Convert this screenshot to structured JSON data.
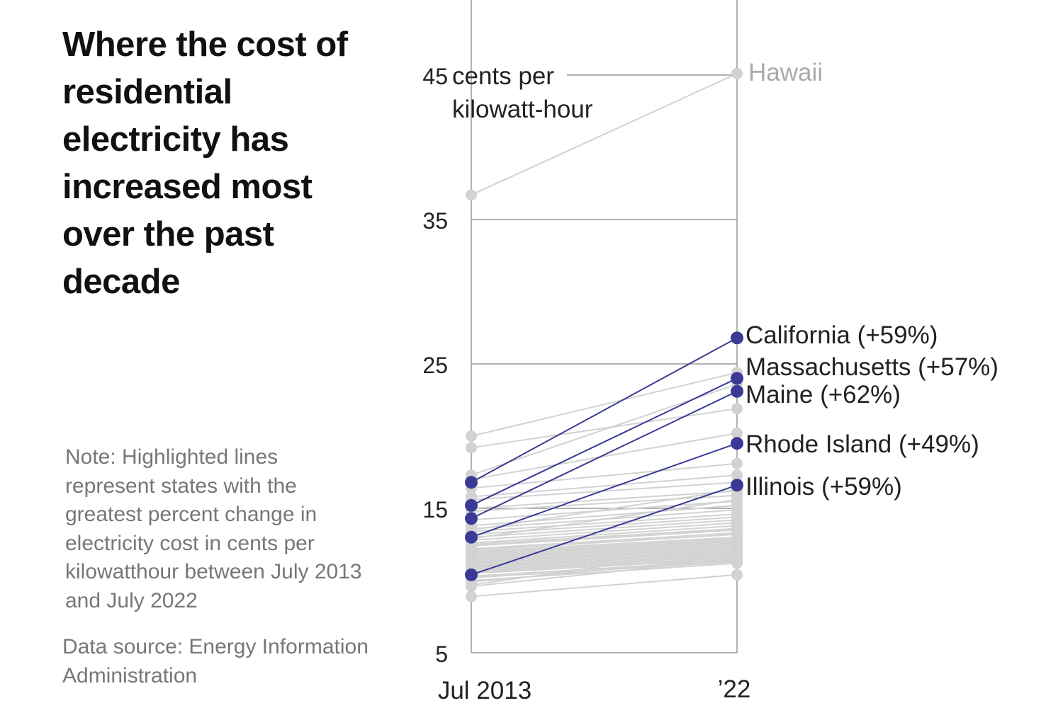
{
  "title": "Where the cost of residential electricity has increased most over the past decade",
  "note": "Note: Highlighted lines represent states with the greatest percent change in electricity cost in cents per kilowatthour between July 2013 and July 2022",
  "source": "Data source: Energy Information Administration",
  "chart_data": {
    "type": "slope",
    "title": "Where the cost of residential electricity has increased most over the past decade",
    "ylabel": "cents per kilowatt-hour",
    "ylim": [
      5,
      50
    ],
    "yticks": [
      5,
      15,
      25,
      35,
      45
    ],
    "ytick_labels": [
      "5",
      "15",
      "25",
      "35",
      "45"
    ],
    "unit_label_line1": "cents per",
    "unit_label_line2": "kilowatt-hour",
    "categories": [
      "Jul 2013",
      "’22"
    ],
    "colors": {
      "highlight": "#3a3a96",
      "other": "#d2d2d2"
    },
    "highlighted": [
      {
        "name": "California",
        "change": "(+59%)",
        "values": [
          16.8,
          26.8
        ]
      },
      {
        "name": "Massachusetts",
        "change": "(+57%)",
        "values": [
          15.2,
          24.0
        ]
      },
      {
        "name": "Maine",
        "change": "(+62%)",
        "values": [
          14.3,
          23.1
        ]
      },
      {
        "name": "Rhode Island",
        "change": "(+49%)",
        "values": [
          13.0,
          19.5
        ]
      },
      {
        "name": "Illinois",
        "change": "(+59%)",
        "values": [
          10.4,
          16.6
        ]
      }
    ],
    "labeled_other": {
      "name": "Hawaii",
      "values": [
        36.7,
        45.1
      ]
    },
    "others": [
      [
        20.0,
        24.4
      ],
      [
        19.2,
        21.9
      ],
      [
        17.3,
        23.6
      ],
      [
        17.0,
        20.2
      ],
      [
        16.4,
        18.1
      ],
      [
        15.8,
        17.3
      ],
      [
        15.6,
        16.8
      ],
      [
        15.0,
        16.2
      ],
      [
        14.8,
        15.9
      ],
      [
        14.2,
        15.5
      ],
      [
        13.8,
        15.2
      ],
      [
        13.6,
        14.9
      ],
      [
        13.4,
        14.6
      ],
      [
        13.2,
        14.4
      ],
      [
        13.0,
        14.2
      ],
      [
        12.8,
        14.0
      ],
      [
        12.6,
        13.8
      ],
      [
        12.5,
        13.6
      ],
      [
        12.4,
        13.5
      ],
      [
        12.2,
        13.3
      ],
      [
        12.1,
        13.2
      ],
      [
        12.0,
        13.0
      ],
      [
        11.9,
        12.9
      ],
      [
        11.8,
        12.8
      ],
      [
        11.7,
        12.7
      ],
      [
        11.6,
        12.6
      ],
      [
        11.5,
        12.5
      ],
      [
        11.4,
        12.4
      ],
      [
        11.3,
        12.3
      ],
      [
        11.2,
        12.2
      ],
      [
        11.1,
        12.1
      ],
      [
        11.0,
        12.0
      ],
      [
        10.9,
        11.9
      ],
      [
        10.8,
        11.8
      ],
      [
        10.7,
        11.7
      ],
      [
        10.6,
        11.6
      ],
      [
        10.5,
        11.5
      ],
      [
        10.3,
        11.4
      ],
      [
        10.2,
        11.3
      ],
      [
        10.0,
        11.2
      ],
      [
        9.9,
        11.6
      ],
      [
        9.7,
        12.3
      ],
      [
        9.6,
        11.5
      ],
      [
        8.9,
        10.4
      ],
      [
        12.9,
        15.6
      ],
      [
        13.5,
        16.3
      ]
    ]
  }
}
